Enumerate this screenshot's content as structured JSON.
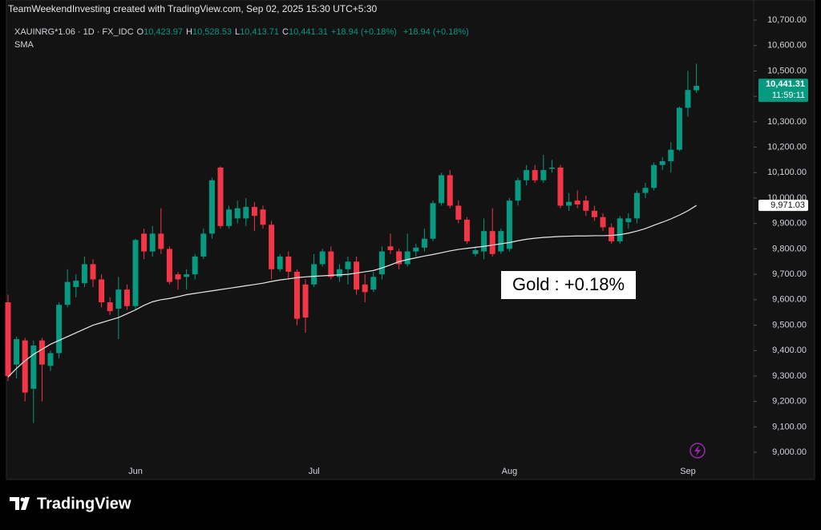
{
  "header": {
    "watermark": "TeamWeekendInvesting created with TradingView.com, Sep 02, 2025 15:30 UTC+5:30",
    "symbol": "XAUINRG*1.06 · 1D · FX_IDC",
    "ohlc": [
      {
        "key": "O",
        "value": "10,423.97"
      },
      {
        "key": "H",
        "value": "10,528.53"
      },
      {
        "key": "L",
        "value": "10,413.71"
      },
      {
        "key": "C",
        "value": "10,441.31"
      }
    ],
    "change": "+18.94 (+0.18%)",
    "change2": "+18.94 (+0.18%)"
  },
  "chart_data": {
    "type": "candlestick",
    "categories": [
      null,
      null,
      null,
      null,
      null,
      null,
      null,
      null,
      null,
      null,
      null,
      null,
      null,
      null,
      null,
      "Jun",
      null,
      null,
      null,
      null,
      null,
      null,
      null,
      null,
      null,
      null,
      null,
      null,
      null,
      null,
      null,
      null,
      null,
      null,
      null,
      null,
      "Jul",
      null,
      null,
      null,
      null,
      null,
      null,
      null,
      null,
      null,
      null,
      null,
      null,
      null,
      null,
      null,
      null,
      null,
      null,
      null,
      null,
      null,
      null,
      "Aug",
      null,
      null,
      null,
      null,
      null,
      null,
      null,
      null,
      null,
      null,
      null,
      null,
      null,
      null,
      null,
      null,
      null,
      null,
      null,
      null,
      "Sep",
      null
    ],
    "open": [
      9590,
      9345,
      9440,
      9250,
      9440,
      9340,
      9390,
      9580,
      9650,
      9665,
      9740,
      9680,
      9590,
      9565,
      9640,
      9575,
      9860,
      9790,
      9860,
      9800,
      9700,
      9690,
      9700,
      9770,
      9860,
      10120,
      9890,
      9920,
      9920,
      9965,
      9955,
      9895,
      9720,
      9770,
      9710,
      9660,
      9660,
      9740,
      9790,
      9690,
      9720,
      9750,
      9660,
      9640,
      9700,
      9810,
      9790,
      9740,
      9790,
      9805,
      9840,
      9980,
      10090,
      9970,
      9915,
      9780,
      9790,
      9870,
      9790,
      9800,
      9990,
      10070,
      10110,
      10070,
      10115,
      10120,
      9970,
      9990,
      9990,
      9950,
      9925,
      9885,
      9830,
      9905,
      9920,
      10020,
      10040,
      10130,
      10145,
      10190,
      10355,
      10423.97
    ],
    "high": [
      9620,
      9455,
      9450,
      9440,
      9450,
      9400,
      9590,
      9720,
      9700,
      9770,
      9760,
      9700,
      9610,
      9690,
      9660,
      9840,
      9880,
      9890,
      9960,
      9810,
      9710,
      9720,
      9780,
      9880,
      10080,
      10125,
      9970,
      9990,
      10000,
      9985,
      9970,
      9910,
      9780,
      9790,
      9720,
      9680,
      9780,
      9800,
      9810,
      9740,
      9770,
      9770,
      9700,
      9710,
      9810,
      9860,
      9800,
      9860,
      9820,
      9880,
      9990,
      10100,
      10110,
      9990,
      9925,
      9810,
      9920,
      9960,
      9880,
      10000,
      10080,
      10130,
      10130,
      10170,
      10150,
      10130,
      10020,
      10030,
      10010,
      9970,
      9940,
      9900,
      9930,
      9940,
      10030,
      10060,
      10140,
      10160,
      10220,
      10360,
      10500,
      10528.53
    ],
    "low": [
      9280,
      9290,
      9200,
      9115,
      9200,
      9320,
      9370,
      9570,
      9610,
      9650,
      9650,
      9570,
      9540,
      9445,
      9560,
      9560,
      9760,
      9770,
      9780,
      9660,
      9640,
      9640,
      9680,
      9760,
      9840,
      9880,
      9880,
      9900,
      9890,
      9870,
      9880,
      9680,
      9710,
      9680,
      9500,
      9470,
      9650,
      9730,
      9680,
      9670,
      9660,
      9620,
      9590,
      9630,
      9680,
      9780,
      9720,
      9730,
      9770,
      9790,
      9830,
      9970,
      9960,
      9900,
      9820,
      9770,
      9760,
      9770,
      9780,
      9790,
      9970,
      10050,
      10060,
      10060,
      10100,
      9960,
      9950,
      9960,
      9930,
      9910,
      9870,
      9820,
      9820,
      9880,
      9900,
      10000,
      10030,
      10110,
      10100,
      10185,
      10320,
      10413.71
    ],
    "close": [
      9300,
      9445,
      9235,
      9420,
      9345,
      9390,
      9580,
      9670,
      9675,
      9740,
      9680,
      9590,
      9555,
      9640,
      9575,
      9835,
      9790,
      9860,
      9800,
      9670,
      9680,
      9700,
      9770,
      9860,
      10070,
      9890,
      9955,
      9960,
      9965,
      9930,
      9895,
      9720,
      9770,
      9710,
      9525,
      9530,
      9740,
      9790,
      9690,
      9720,
      9750,
      9640,
      9630,
      9690,
      9790,
      9795,
      9740,
      9790,
      9805,
      9840,
      9980,
      10090,
      9970,
      9915,
      9830,
      9795,
      9870,
      9780,
      9870,
      9990,
      10070,
      10110,
      10070,
      10110,
      10120,
      9970,
      9985,
      9975,
      9950,
      9925,
      9885,
      9830,
      9920,
      9920,
      10020,
      10040,
      10130,
      10145,
      10190,
      10355,
      10425,
      10441.31
    ],
    "up_color": "#089981",
    "down_color": "#f23645",
    "overlays": [
      {
        "name": "SMA",
        "color": "#e8e8e8",
        "values": [
          9296,
          9330,
          9360,
          9385,
          9405,
          9425,
          9440,
          9455,
          9470,
          9485,
          9500,
          9510,
          9520,
          9530,
          9545,
          9560,
          9578,
          9592,
          9600,
          9605,
          9612,
          9620,
          9625,
          9630,
          9635,
          9640,
          9645,
          9650,
          9655,
          9660,
          9665,
          9672,
          9678,
          9682,
          9687,
          9690,
          9692,
          9694,
          9696,
          9698,
          9700,
          9705,
          9710,
          9715,
          9725,
          9737,
          9750,
          9758,
          9765,
          9772,
          9778,
          9785,
          9792,
          9798,
          9802,
          9806,
          9810,
          9815,
          9820,
          9825,
          9832,
          9838,
          9842,
          9845,
          9847,
          9849,
          9850,
          9851,
          9851,
          9852,
          9852,
          9853,
          9856,
          9862,
          9870,
          9880,
          9893,
          9905,
          9918,
          9933,
          9950,
          9971.03
        ]
      }
    ],
    "ylim": [
      8893,
      10779
    ],
    "yticks": [
      {
        "value": 9000,
        "label": "9,000.00"
      },
      {
        "value": 9100,
        "label": "9,100.00"
      },
      {
        "value": 9200,
        "label": "9,200.00"
      },
      {
        "value": 9300,
        "label": "9,300.00"
      },
      {
        "value": 9400,
        "label": "9,400.00"
      },
      {
        "value": 9500,
        "label": "9,500.00"
      },
      {
        "value": 9600,
        "label": "9,600.00"
      },
      {
        "value": 9700,
        "label": "9,700.00"
      },
      {
        "value": 9800,
        "label": "9,800.00"
      },
      {
        "value": 9900,
        "label": "9,900.00"
      },
      {
        "value": 10000,
        "label": "10,000.00"
      },
      {
        "value": 10100,
        "label": "10,100.00"
      },
      {
        "value": 10200,
        "label": "10,200.00"
      },
      {
        "value": 10300,
        "label": "10,300.00"
      },
      {
        "value": 10400,
        "label": "10,400.00"
      },
      {
        "value": 10500,
        "label": "10,500.00"
      },
      {
        "value": 10600,
        "label": "10,600.00"
      },
      {
        "value": 10700,
        "label": "10,700.00"
      }
    ],
    "grid": false,
    "last_price": {
      "value": 10441.31,
      "label": "10,441.31"
    },
    "countdown": "11:59:11",
    "sma_last": {
      "value": 9971.03,
      "label": "9,971.03"
    },
    "annotation": "Gold : +0.18%"
  },
  "footer": {
    "brand": "TradingView"
  }
}
